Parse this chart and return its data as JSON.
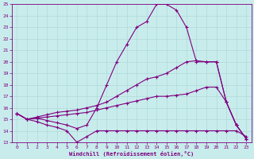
{
  "xlabel": "Windchill (Refroidissement éolien,°C)",
  "bg_color": "#c8ecec",
  "line_color": "#800080",
  "grid_color": "#b0d8d8",
  "xlim": [
    -0.5,
    23.5
  ],
  "ylim": [
    13,
    25
  ],
  "yticks": [
    13,
    14,
    15,
    16,
    17,
    18,
    19,
    20,
    21,
    22,
    23,
    24,
    25
  ],
  "xticks": [
    0,
    1,
    2,
    3,
    4,
    5,
    6,
    7,
    8,
    9,
    10,
    11,
    12,
    13,
    14,
    15,
    16,
    17,
    18,
    19,
    20,
    21,
    22,
    23
  ],
  "line1_x": [
    0,
    1,
    2,
    3,
    4,
    5,
    6,
    7,
    8,
    9,
    10,
    11,
    12,
    13,
    14,
    15,
    16,
    17,
    18,
    19,
    20,
    21,
    22,
    23
  ],
  "line1_y": [
    15.5,
    15.0,
    14.8,
    14.5,
    14.3,
    14.0,
    13.0,
    13.5,
    14.0,
    14.0,
    14.0,
    14.0,
    14.0,
    14.0,
    14.0,
    14.0,
    14.0,
    14.0,
    14.0,
    14.0,
    14.0,
    14.0,
    14.0,
    13.5
  ],
  "line2_x": [
    0,
    1,
    2,
    3,
    4,
    5,
    6,
    7,
    8,
    9,
    10,
    11,
    12,
    13,
    14,
    15,
    16,
    17,
    18,
    19,
    20,
    21,
    22,
    23
  ],
  "line2_y": [
    15.5,
    15.0,
    15.1,
    15.2,
    15.3,
    15.4,
    15.5,
    15.6,
    15.8,
    16.0,
    16.2,
    16.4,
    16.6,
    16.8,
    17.0,
    17.0,
    17.1,
    17.2,
    17.5,
    17.8,
    17.8,
    16.5,
    14.5,
    13.3
  ],
  "line3_x": [
    0,
    1,
    2,
    3,
    4,
    5,
    6,
    7,
    8,
    9,
    10,
    11,
    12,
    13,
    14,
    15,
    16,
    17,
    18,
    19,
    20,
    21,
    22,
    23
  ],
  "line3_y": [
    15.5,
    15.0,
    15.2,
    15.4,
    15.6,
    15.7,
    15.8,
    16.0,
    16.2,
    16.5,
    17.0,
    17.5,
    18.0,
    18.5,
    18.7,
    19.0,
    19.5,
    20.0,
    20.1,
    20.0,
    20.0,
    16.5,
    14.5,
    13.3
  ],
  "line4_x": [
    0,
    1,
    2,
    3,
    4,
    5,
    6,
    7,
    8,
    9,
    10,
    11,
    12,
    13,
    14,
    15,
    16,
    17,
    18,
    19,
    20,
    21,
    22,
    23
  ],
  "line4_y": [
    15.5,
    15.0,
    15.1,
    14.9,
    14.7,
    14.5,
    14.2,
    14.5,
    16.0,
    18.0,
    20.0,
    21.5,
    23.0,
    23.5,
    25.0,
    25.0,
    24.5,
    23.0,
    20.0,
    20.0,
    20.0,
    16.5,
    14.5,
    13.3
  ],
  "marker": "+",
  "markersize": 3,
  "linewidth": 0.8
}
